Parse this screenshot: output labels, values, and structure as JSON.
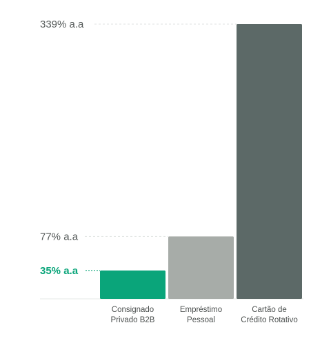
{
  "chart_data": {
    "type": "bar",
    "categories": [
      [
        "Consignado",
        "Privado B2B"
      ],
      [
        "Empréstimo",
        "Pessoal"
      ],
      [
        "Cartão de",
        "Crédito Rotativo"
      ]
    ],
    "values": [
      35,
      77,
      339
    ],
    "colors": [
      "#0aa57a",
      "#a7aca8",
      "#5c6967"
    ],
    "value_labels": [
      "35% a.a",
      "77% a.a",
      "339% a.a"
    ],
    "highlight_color": "#0aa57a",
    "label_color": "#555a59",
    "unit": "% a.a",
    "ylim": [
      0,
      339
    ],
    "grid": false,
    "legend": "none"
  }
}
